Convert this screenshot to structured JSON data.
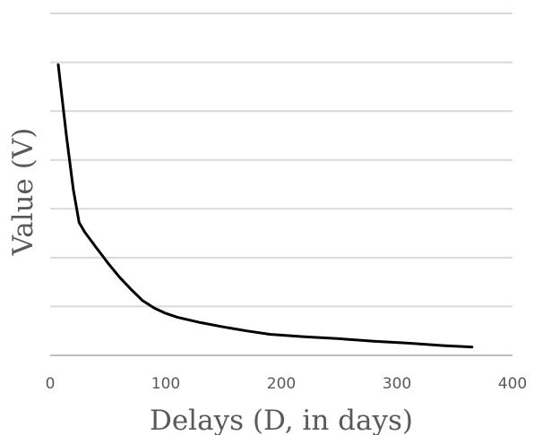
{
  "chart_data": {
    "type": "line",
    "title": "",
    "xlabel": "Delays (D, in days)",
    "ylabel": "Value (V)",
    "xlim": [
      0,
      400
    ],
    "ylim": [
      0,
      7
    ],
    "x_ticks": [
      "0",
      "100",
      "200",
      "300",
      "400"
    ],
    "y_ticks": [],
    "grid": true,
    "legend": "none",
    "series": [
      {
        "color": "#000000",
        "x": [
          7,
          14,
          20,
          25,
          30,
          40,
          50,
          60,
          70,
          80,
          90,
          100,
          110,
          130,
          150,
          170,
          190,
          220,
          250,
          280,
          310,
          340,
          365
        ],
        "y": [
          5.95,
          4.5,
          3.4,
          2.72,
          2.52,
          2.2,
          1.89,
          1.6,
          1.35,
          1.12,
          0.97,
          0.86,
          0.78,
          0.67,
          0.58,
          0.5,
          0.43,
          0.38,
          0.34,
          0.29,
          0.25,
          0.2,
          0.17
        ]
      }
    ]
  }
}
